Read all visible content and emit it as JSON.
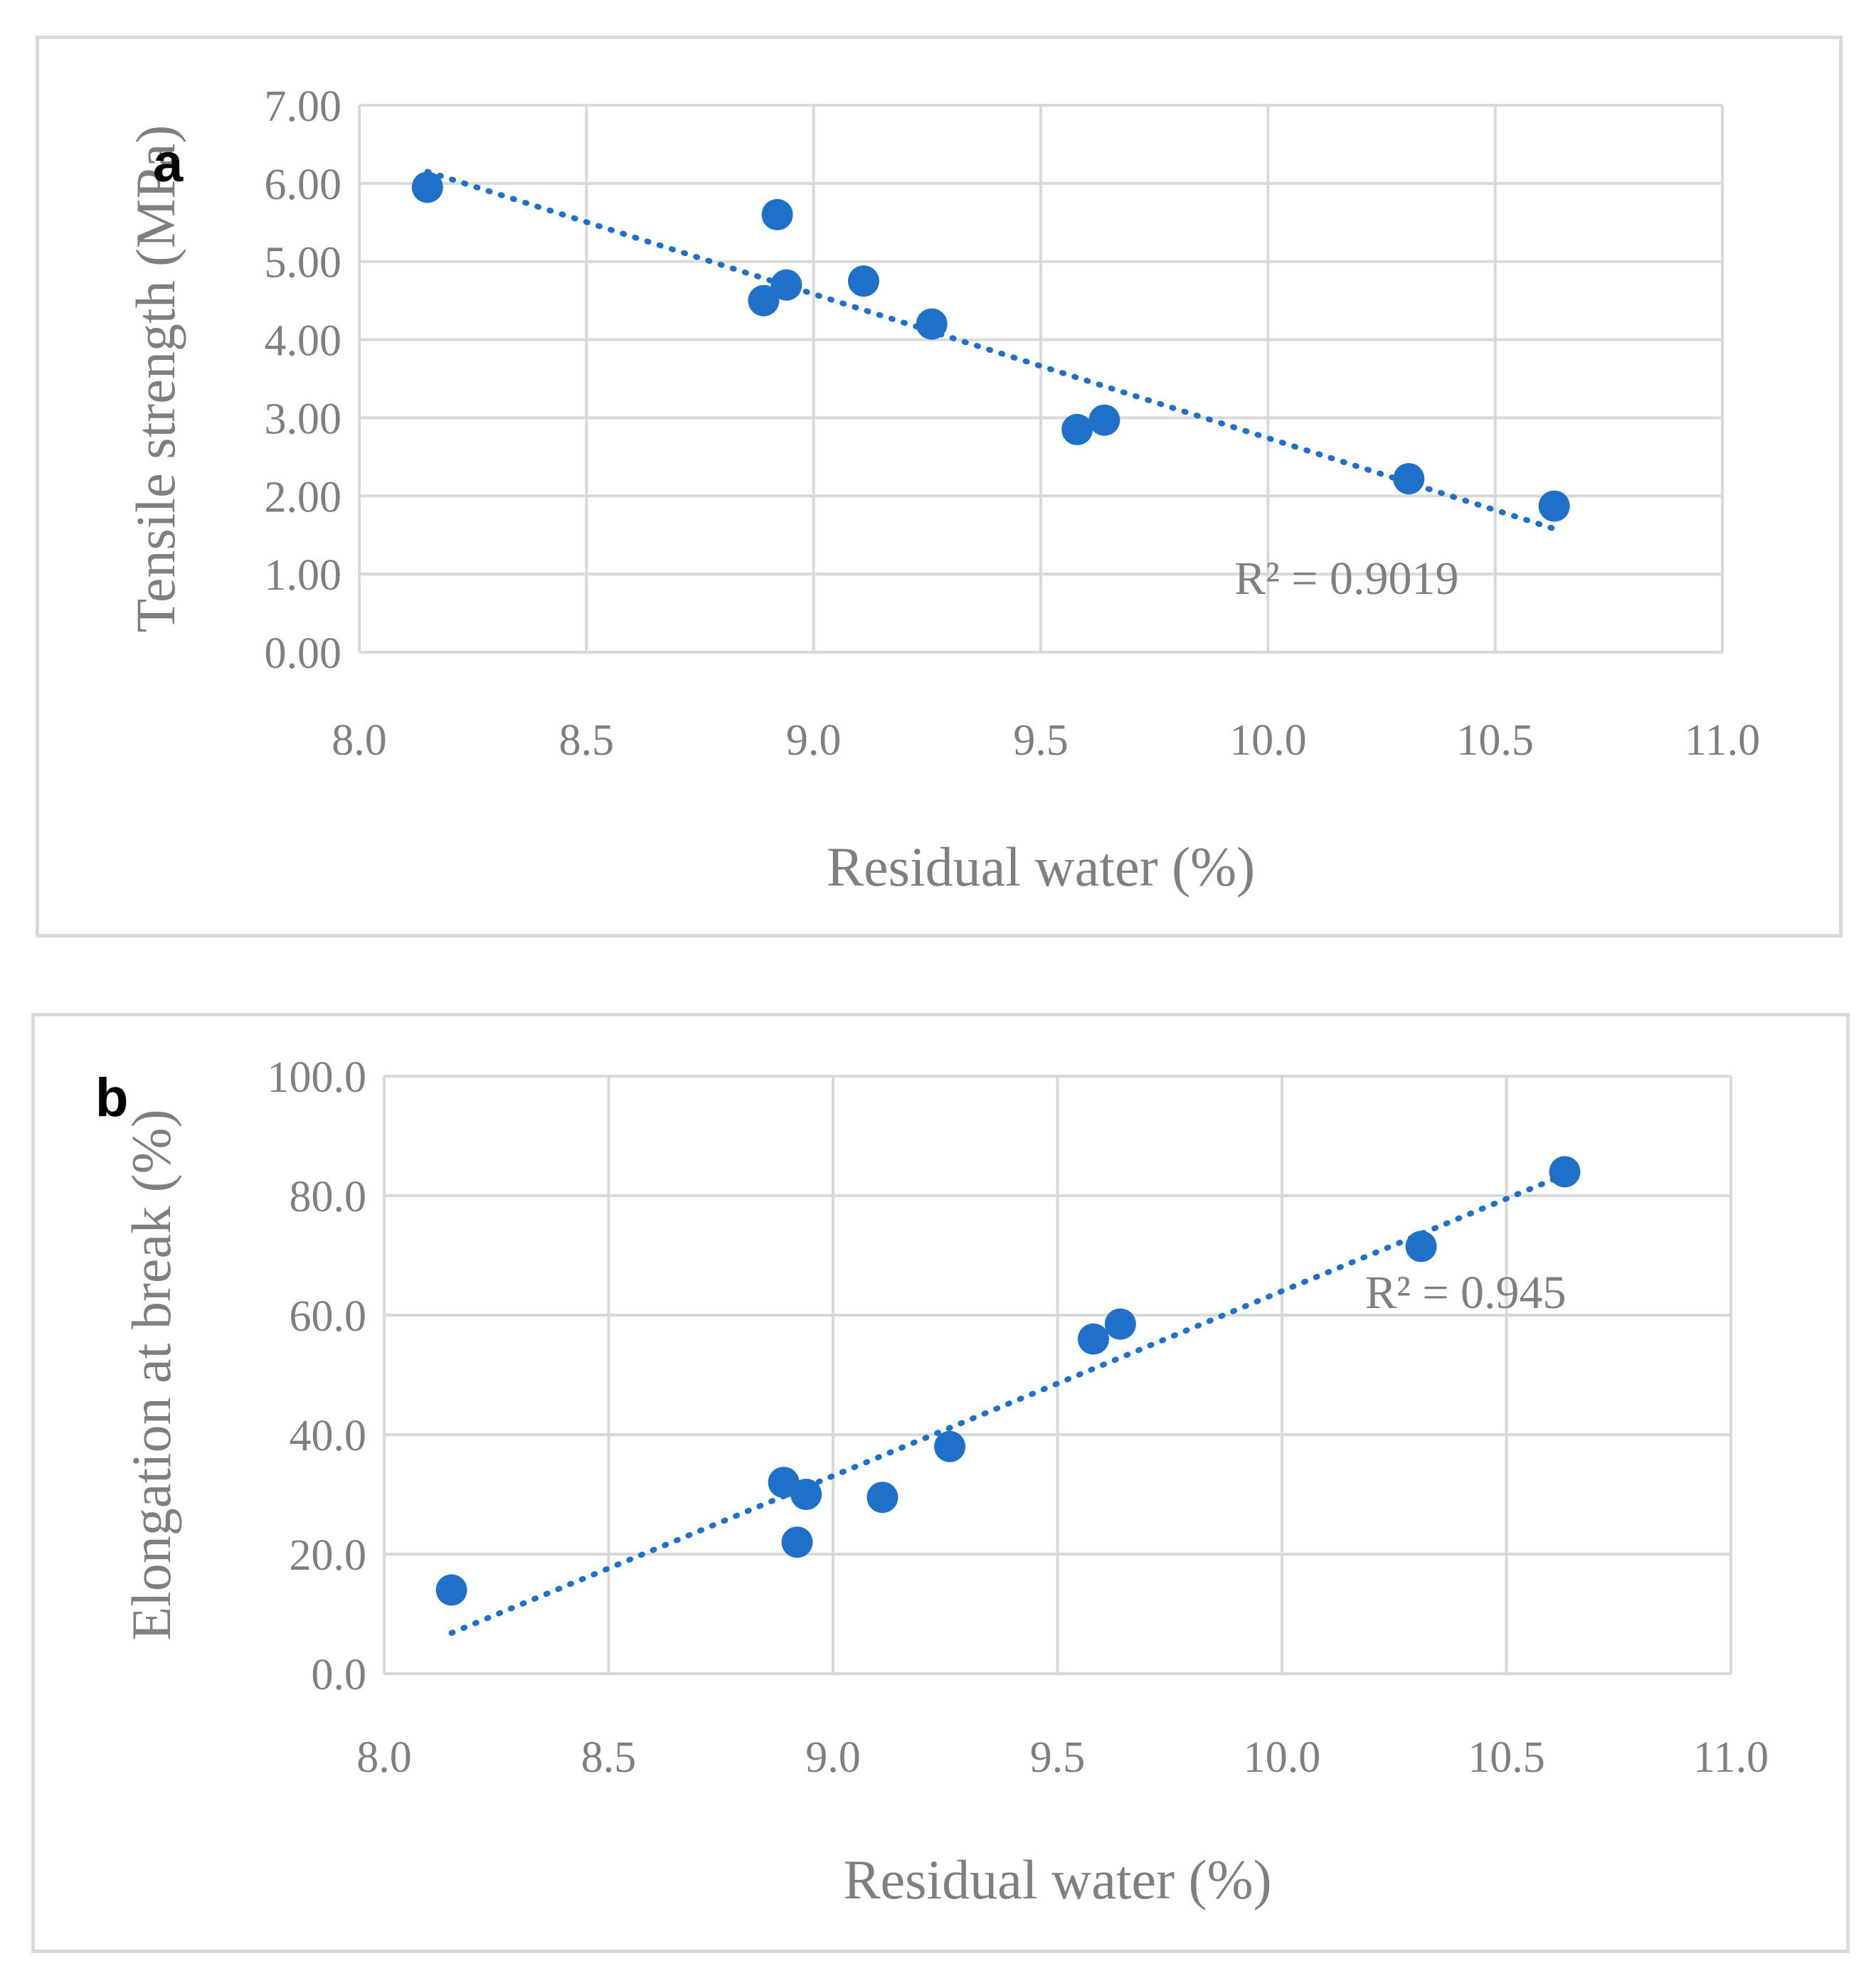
{
  "chart_data": [
    {
      "type": "scatter",
      "panel_label": "a",
      "xlabel": "Residual water (%)",
      "ylabel": "Tensile strength (MPa)",
      "xlim": [
        8.0,
        11.0
      ],
      "ylim": [
        0.0,
        7.0
      ],
      "x_ticks": [
        "8.0",
        "8.5",
        "9.0",
        "9.5",
        "10.0",
        "10.5",
        "11.0"
      ],
      "y_ticks": [
        "0.00",
        "1.00",
        "2.00",
        "3.00",
        "4.00",
        "5.00",
        "6.00",
        "7.00"
      ],
      "grid": true,
      "series": [
        {
          "name": "samples",
          "color": "#1f70c8",
          "points": [
            {
              "x": 8.15,
              "y": 5.95
            },
            {
              "x": 8.89,
              "y": 4.5
            },
            {
              "x": 8.92,
              "y": 5.6
            },
            {
              "x": 8.94,
              "y": 4.7
            },
            {
              "x": 9.11,
              "y": 4.75
            },
            {
              "x": 9.26,
              "y": 4.2
            },
            {
              "x": 9.58,
              "y": 2.85
            },
            {
              "x": 9.64,
              "y": 2.97
            },
            {
              "x": 10.31,
              "y": 2.22
            },
            {
              "x": 10.63,
              "y": 1.87
            }
          ]
        }
      ],
      "trendline": {
        "type": "linear",
        "x": [
          8.15,
          10.63
        ],
        "y": [
          6.15,
          1.58
        ],
        "r2_label": "R² = 0.9019"
      }
    },
    {
      "type": "scatter",
      "panel_label": "b",
      "xlabel": "Residual water (%)",
      "ylabel": "Elongation at break (%)",
      "xlim": [
        8.0,
        11.0
      ],
      "ylim": [
        0.0,
        100.0
      ],
      "x_ticks": [
        "8.0",
        "8.5",
        "9.0",
        "9.5",
        "10.0",
        "10.5",
        "11.0"
      ],
      "y_ticks": [
        "0.0",
        "20.0",
        "40.0",
        "60.0",
        "80.0",
        "100.0"
      ],
      "grid": true,
      "series": [
        {
          "name": "samples",
          "color": "#1f70c8",
          "points": [
            {
              "x": 8.15,
              "y": 14.0
            },
            {
              "x": 8.89,
              "y": 32.0
            },
            {
              "x": 8.92,
              "y": 22.0
            },
            {
              "x": 8.94,
              "y": 30.0
            },
            {
              "x": 9.11,
              "y": 29.5
            },
            {
              "x": 9.26,
              "y": 38.0
            },
            {
              "x": 9.58,
              "y": 56.0
            },
            {
              "x": 9.64,
              "y": 58.5
            },
            {
              "x": 10.31,
              "y": 71.5
            },
            {
              "x": 10.63,
              "y": 84.0
            }
          ]
        }
      ],
      "trendline": {
        "type": "linear",
        "x": [
          8.15,
          10.63
        ],
        "y": [
          6.8,
          83.5
        ],
        "r2_label": "R² = 0.945"
      }
    }
  ]
}
